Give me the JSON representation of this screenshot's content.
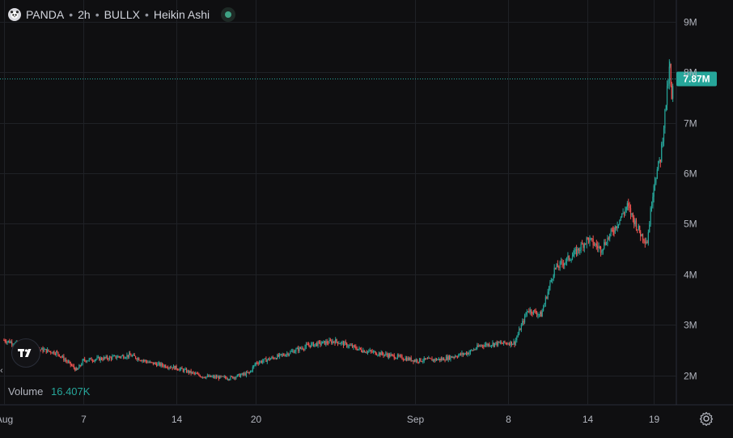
{
  "header": {
    "symbol": "PANDA",
    "interval": "2h",
    "exchange": "BULLX",
    "chart_style": "Heikin Ashi",
    "separator": "•"
  },
  "volume": {
    "label": "Volume",
    "value": "16.407K"
  },
  "price_label": "7.87M",
  "colors": {
    "background": "#0f0f11",
    "grid": "#1f2126",
    "up": "#26a69a",
    "down": "#ef5350",
    "text": "#b2b5be"
  },
  "icons": [
    "panda-logo-icon",
    "status-dot-icon",
    "tradingview-logo-icon",
    "chevron-left-icon",
    "gear-icon"
  ],
  "chart_data": {
    "type": "candlestick",
    "y_ticks": [
      "9M",
      "8M",
      "7M",
      "6M",
      "5M",
      "4M",
      "3M",
      "2M"
    ],
    "y_tick_values": [
      9,
      8,
      7,
      6,
      5,
      4,
      3,
      2
    ],
    "y_unit": "M",
    "ylim": [
      1.9,
      9.3
    ],
    "x_ticks": [
      "Aug",
      "7",
      "14",
      "20",
      "Sep",
      "8",
      "14",
      "19"
    ],
    "x_tick_values": [
      0,
      6,
      13,
      19,
      31,
      38,
      44,
      49
    ],
    "xlim": [
      -0.3,
      50.7
    ],
    "last_price": 7.87,
    "grid": true,
    "series": [
      {
        "x": 0.0,
        "close": 2.7
      },
      {
        "x": 2.0,
        "close": 2.55
      },
      {
        "x": 4.0,
        "close": 2.45
      },
      {
        "x": 5.5,
        "close": 2.1
      },
      {
        "x": 6.0,
        "close": 2.3
      },
      {
        "x": 8.0,
        "close": 2.35
      },
      {
        "x": 9.5,
        "close": 2.4
      },
      {
        "x": 11.0,
        "close": 2.25
      },
      {
        "x": 13.0,
        "close": 2.15
      },
      {
        "x": 15.0,
        "close": 1.98
      },
      {
        "x": 17.0,
        "close": 1.95
      },
      {
        "x": 18.5,
        "close": 2.05
      },
      {
        "x": 19.0,
        "close": 2.25
      },
      {
        "x": 21.0,
        "close": 2.4
      },
      {
        "x": 23.0,
        "close": 2.6
      },
      {
        "x": 25.0,
        "close": 2.68
      },
      {
        "x": 27.0,
        "close": 2.5
      },
      {
        "x": 29.0,
        "close": 2.4
      },
      {
        "x": 31.0,
        "close": 2.3
      },
      {
        "x": 33.0,
        "close": 2.32
      },
      {
        "x": 35.0,
        "close": 2.45
      },
      {
        "x": 36.0,
        "close": 2.6
      },
      {
        "x": 37.0,
        "close": 2.63
      },
      {
        "x": 38.5,
        "close": 2.65
      },
      {
        "x": 39.5,
        "close": 3.3
      },
      {
        "x": 40.5,
        "close": 3.2
      },
      {
        "x": 41.5,
        "close": 4.1
      },
      {
        "x": 43.0,
        "close": 4.4
      },
      {
        "x": 44.0,
        "close": 4.7
      },
      {
        "x": 45.0,
        "close": 4.5
      },
      {
        "x": 46.0,
        "close": 4.9
      },
      {
        "x": 47.0,
        "close": 5.35
      },
      {
        "x": 48.0,
        "close": 4.8
      },
      {
        "x": 48.5,
        "close": 4.65
      },
      {
        "x": 49.0,
        "close": 5.8
      },
      {
        "x": 49.5,
        "close": 6.3
      },
      {
        "x": 50.0,
        "close": 7.6
      },
      {
        "x": 50.2,
        "close": 8.1
      },
      {
        "x": 50.35,
        "close": 7.4
      },
      {
        "x": 50.5,
        "close": 7.87
      }
    ]
  }
}
